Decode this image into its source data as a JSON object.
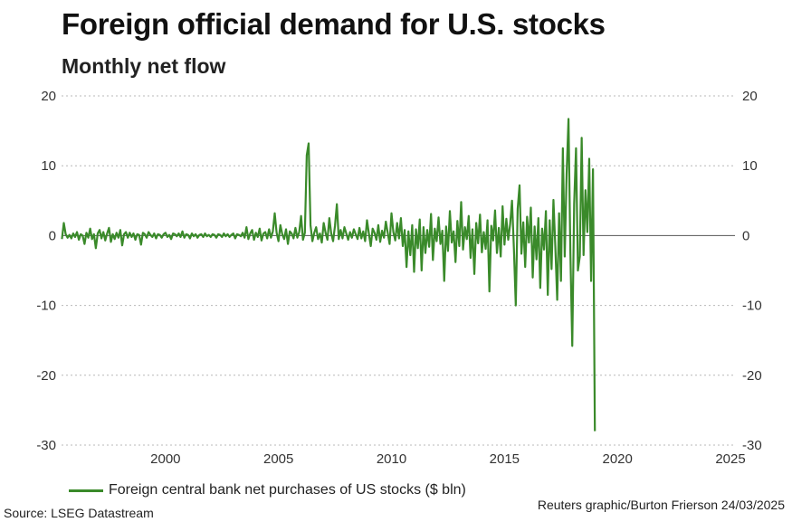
{
  "title": "Foreign official demand for U.S. stocks",
  "subtitle": "Monthly net flow",
  "legend_label": "Foreign central bank net purchases of US stocks ($ bln)",
  "source": "Source: LSEG Datastream",
  "credit": "Reuters graphic/Burton Frierson 24/03/2025",
  "series_color": "#3a8a2a",
  "chart_data": {
    "type": "line",
    "x_start": "1995-06",
    "x_end": "2025-02",
    "xlim": [
      1995.4,
      2025.2
    ],
    "ylim": [
      -30,
      20
    ],
    "yticks": [
      20,
      10,
      0,
      -10,
      -20,
      -30
    ],
    "yticks_left_labels": [
      "20",
      "10",
      "0",
      "-10",
      "-20",
      "-30"
    ],
    "yticks_right_labels": [
      "20",
      "10",
      "0",
      "-10",
      "-20",
      "-30"
    ],
    "xticks": [
      2000,
      2005,
      2010,
      2015,
      2020,
      2025
    ],
    "xtick_labels": [
      "2000",
      "2005",
      "2010",
      "2015",
      "2020",
      "2025"
    ],
    "grid": true,
    "legend_position": "bottom-left",
    "series": [
      {
        "name": "Foreign central bank net purchases of US stocks ($ bln)",
        "values": [
          -0.5,
          1.8,
          0.2,
          -0.3,
          0.1,
          -0.4,
          0.3,
          -0.2,
          0.5,
          -0.6,
          0.2,
          0.0,
          -1.2,
          0.4,
          -0.3,
          1.0,
          -0.5,
          0.2,
          -1.8,
          0.3,
          0.8,
          -0.4,
          0.5,
          -0.7,
          0.3,
          1.1,
          -0.9,
          0.2,
          -0.5,
          0.4,
          -0.3,
          0.8,
          -1.4,
          0.2,
          0.5,
          -0.3,
          0.4,
          -0.2,
          0.3,
          -0.6,
          0.2,
          0.1,
          -1.3,
          0.4,
          0.2,
          -0.3,
          0.5,
          0.1,
          -0.2,
          0.3,
          -0.4,
          0.2,
          0.1,
          -0.3,
          0.2,
          0.4,
          -0.2,
          0.1,
          -0.5,
          0.3,
          0.2,
          -0.1,
          0.3,
          -0.2,
          0.6,
          -0.3,
          0.2,
          0.1,
          -0.4,
          0.3,
          -0.1,
          0.2,
          -0.3,
          0.1,
          0.2,
          -0.2,
          0.3,
          -0.1,
          0.1,
          -0.2,
          0.2,
          0.1,
          -0.3,
          0.2,
          0.1,
          -0.2,
          0.3,
          -0.1,
          0.2,
          -0.2,
          0.1,
          0.3,
          -0.4,
          0.2,
          0.1,
          -0.1,
          0.4,
          -0.3,
          1.2,
          -0.5,
          0.3,
          0.8,
          -0.6,
          0.4,
          -0.2,
          1.0,
          -0.7,
          0.3,
          0.5,
          -0.4,
          0.9,
          -0.3,
          0.6,
          3.2,
          0.4,
          -0.8,
          1.5,
          0.2,
          -0.5,
          0.9,
          -1.2,
          0.6,
          0.3,
          -0.4,
          1.1,
          -0.3,
          0.5,
          2.8,
          -0.6,
          0.4,
          11.5,
          13.2,
          1.5,
          -0.8,
          0.4,
          1.2,
          -0.5,
          0.3,
          -1.0,
          1.8,
          0.4,
          -0.6,
          2.5,
          0.3,
          -0.8,
          1.4,
          4.5,
          -0.5,
          0.8,
          -0.4,
          1.2,
          0.3,
          -0.6,
          0.5,
          -0.3,
          0.9,
          0.2,
          -0.5,
          1.1,
          -0.4,
          0.6,
          -0.8,
          2.2,
          0.3,
          -1.5,
          1.0,
          0.4,
          -0.6,
          1.5,
          -0.9,
          0.7,
          -0.3,
          2.0,
          0.4,
          -1.2,
          3.2,
          0.5,
          -0.7,
          1.8,
          -0.4,
          2.5,
          -1.5,
          0.8,
          -4.5,
          0.6,
          -2.8,
          1.5,
          -5.2,
          0.9,
          -1.8,
          2.3,
          -5.0,
          1.2,
          -2.5,
          0.8,
          -1.6,
          3.1,
          -3.5,
          1.0,
          -0.8,
          2.6,
          -1.2,
          0.7,
          -6.5,
          1.3,
          -2.2,
          3.5,
          -1.0,
          0.6,
          -3.8,
          2.1,
          -1.5,
          4.8,
          -2.0,
          1.2,
          -0.5,
          2.8,
          -3.2,
          0.9,
          -5.5,
          1.8,
          -1.1,
          3.0,
          -2.4,
          0.5,
          -1.9,
          2.2,
          -8.0,
          1.4,
          -0.7,
          3.6,
          -2.5,
          1.1,
          -3.0,
          4.2,
          -1.3,
          2.4,
          -0.6,
          1.6,
          5.0,
          -1.8,
          -10.0,
          3.8,
          7.2,
          -2.6,
          1.9,
          -4.5,
          2.7,
          -1.0,
          4.0,
          -6.0,
          1.3,
          -3.4,
          2.5,
          -7.5,
          1.0,
          -2.0,
          3.5,
          -8.5,
          2.2,
          -4.8,
          5.1,
          -1.6,
          -9.2,
          3.2,
          -6.5,
          12.5,
          -3.0,
          8.8,
          16.7,
          -2.5,
          -15.8,
          4.5,
          12.5,
          -5.0,
          -3.0,
          14.0,
          -2.8,
          6.5,
          0.5,
          11.0,
          -6.5,
          9.5,
          -28.0
        ]
      }
    ]
  }
}
